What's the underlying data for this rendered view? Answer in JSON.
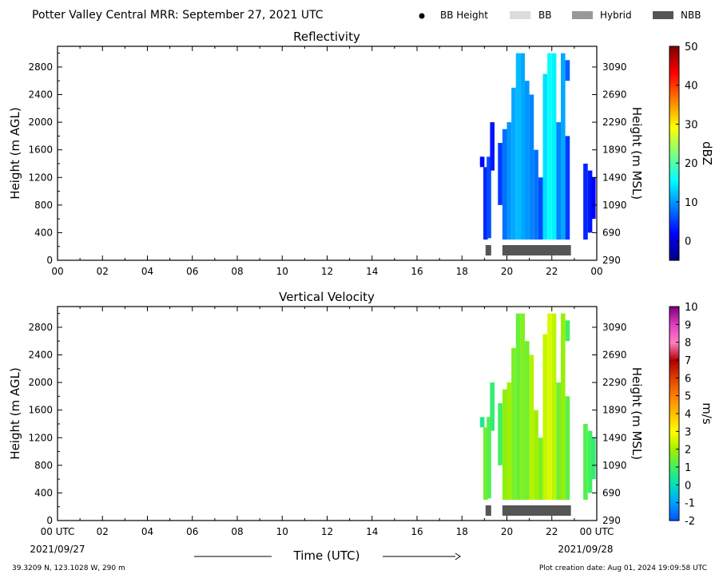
{
  "header": {
    "title": "Potter Valley Central MRR:  September 27, 2021 UTC",
    "legend": [
      {
        "label": "BB Height",
        "kind": "dot",
        "color": "#000000"
      },
      {
        "label": "BB",
        "kind": "box",
        "color": "#dcdcdc"
      },
      {
        "label": "Hybrid",
        "kind": "box",
        "color": "#999999"
      },
      {
        "label": "NBB",
        "kind": "box",
        "color": "#555555"
      }
    ]
  },
  "footer": {
    "location": "39.3209 N, 123.1028 W, 290 m",
    "creation": "Plot creation date: Aug 01, 2024 19:09:58 UTC",
    "start_date": "2021/09/27",
    "end_date": "2021/09/28",
    "xlabel": "Time (UTC)"
  },
  "chart_data": [
    {
      "id": "reflectivity",
      "type": "heatmap",
      "title": "Reflectivity",
      "xlabel": "",
      "ylabel": "Height (m AGL)",
      "y2label": "Height (m MSL)",
      "x_ticks": [
        "00",
        "02",
        "04",
        "06",
        "08",
        "10",
        "12",
        "14",
        "16",
        "18",
        "20",
        "22",
        "00"
      ],
      "xlim": [
        0,
        24
      ],
      "ylim": [
        0,
        3100
      ],
      "y_ticks": [
        0,
        400,
        800,
        1200,
        1600,
        2000,
        2400,
        2800
      ],
      "y2_ticks": [
        290,
        690,
        1090,
        1490,
        1890,
        2290,
        2690,
        3090
      ],
      "colorbar": {
        "label": "dBZ",
        "range": [
          -5,
          50
        ],
        "ticks": [
          0,
          10,
          20,
          30,
          40,
          50
        ],
        "colors": [
          "#00007f",
          "#0000ff",
          "#007fff",
          "#00ffff",
          "#7fff7f",
          "#ffff00",
          "#ff7f00",
          "#ff0000",
          "#7f0000"
        ]
      },
      "echo_columns": [
        {
          "x": 18.9,
          "top": 1500,
          "bottom": 1350,
          "value": 2
        },
        {
          "x": 19.05,
          "top": 1350,
          "bottom": 300,
          "value": 4
        },
        {
          "x": 19.2,
          "top": 1500,
          "bottom": 320,
          "value": 6
        },
        {
          "x": 19.35,
          "top": 2000,
          "bottom": 1300,
          "value": 3
        },
        {
          "x": 19.7,
          "top": 1700,
          "bottom": 800,
          "value": 5
        },
        {
          "x": 19.9,
          "top": 1900,
          "bottom": 300,
          "value": 8
        },
        {
          "x": 20.1,
          "top": 2000,
          "bottom": 300,
          "value": 10
        },
        {
          "x": 20.3,
          "top": 2500,
          "bottom": 300,
          "value": 11
        },
        {
          "x": 20.5,
          "top": 3000,
          "bottom": 300,
          "value": 12
        },
        {
          "x": 20.7,
          "top": 3000,
          "bottom": 300,
          "value": 11
        },
        {
          "x": 20.9,
          "top": 2600,
          "bottom": 300,
          "value": 10
        },
        {
          "x": 21.1,
          "top": 2400,
          "bottom": 300,
          "value": 9
        },
        {
          "x": 21.3,
          "top": 1600,
          "bottom": 300,
          "value": 8
        },
        {
          "x": 21.5,
          "top": 1200,
          "bottom": 300,
          "value": 6
        },
        {
          "x": 21.7,
          "top": 2700,
          "bottom": 300,
          "value": 14
        },
        {
          "x": 21.9,
          "top": 3000,
          "bottom": 300,
          "value": 16
        },
        {
          "x": 22.1,
          "top": 3000,
          "bottom": 300,
          "value": 15
        },
        {
          "x": 22.3,
          "top": 2000,
          "bottom": 300,
          "value": 9
        },
        {
          "x": 22.5,
          "top": 3000,
          "bottom": 300,
          "value": 11
        },
        {
          "x": 22.7,
          "top": 2900,
          "bottom": 2600,
          "value": 7
        },
        {
          "x": 22.7,
          "top": 1800,
          "bottom": 300,
          "value": 5
        },
        {
          "x": 23.5,
          "top": 1400,
          "bottom": 300,
          "value": 4
        },
        {
          "x": 23.7,
          "top": 1300,
          "bottom": 400,
          "value": 3
        },
        {
          "x": 23.85,
          "top": 1200,
          "bottom": 600,
          "value": 2
        }
      ],
      "bb_segments": [
        {
          "type": "NBB",
          "start": 19.05,
          "end": 19.3
        },
        {
          "type": "NBB",
          "start": 19.8,
          "end": 22.85
        }
      ]
    },
    {
      "id": "vertical-velocity",
      "type": "heatmap",
      "title": "Vertical Velocity",
      "xlabel": "Time (UTC)",
      "ylabel": "Height (m AGL)",
      "y2label": "Height (m MSL)",
      "x_ticks": [
        "00 UTC",
        "02",
        "04",
        "06",
        "08",
        "10",
        "12",
        "14",
        "16",
        "18",
        "20",
        "22",
        "00 UTC"
      ],
      "xlim": [
        0,
        24
      ],
      "ylim": [
        0,
        3100
      ],
      "y_ticks": [
        0,
        400,
        800,
        1200,
        1600,
        2000,
        2400,
        2800
      ],
      "y2_ticks": [
        290,
        690,
        1090,
        1490,
        1890,
        2290,
        2690,
        3090
      ],
      "colorbar": {
        "label": "m/s",
        "range": [
          -2,
          10
        ],
        "ticks": [
          -2,
          -1,
          0,
          1,
          2,
          3,
          4,
          5,
          6,
          7,
          8,
          9,
          10
        ],
        "colors": [
          "#0050ff",
          "#00a0ff",
          "#00e0c0",
          "#40f060",
          "#a0f000",
          "#ffff00",
          "#ffc000",
          "#ff8000",
          "#e04000",
          "#b00000",
          "#ff80c0",
          "#e040c0",
          "#800080"
        ]
      },
      "echo_columns": [
        {
          "x": 18.9,
          "top": 1500,
          "bottom": 1350,
          "value": 0.5
        },
        {
          "x": 19.05,
          "top": 1350,
          "bottom": 300,
          "value": 1.5
        },
        {
          "x": 19.2,
          "top": 1500,
          "bottom": 320,
          "value": 1.2
        },
        {
          "x": 19.35,
          "top": 2000,
          "bottom": 1300,
          "value": 0.8
        },
        {
          "x": 19.7,
          "top": 1700,
          "bottom": 800,
          "value": 1.0
        },
        {
          "x": 19.9,
          "top": 1900,
          "bottom": 300,
          "value": 1.8
        },
        {
          "x": 20.1,
          "top": 2000,
          "bottom": 300,
          "value": 2.0
        },
        {
          "x": 20.3,
          "top": 2500,
          "bottom": 300,
          "value": 1.6
        },
        {
          "x": 20.5,
          "top": 3000,
          "bottom": 300,
          "value": 1.4
        },
        {
          "x": 20.7,
          "top": 3000,
          "bottom": 300,
          "value": 1.7
        },
        {
          "x": 20.9,
          "top": 2600,
          "bottom": 300,
          "value": 1.5
        },
        {
          "x": 21.1,
          "top": 2400,
          "bottom": 300,
          "value": 2.2
        },
        {
          "x": 21.3,
          "top": 1600,
          "bottom": 300,
          "value": 2.0
        },
        {
          "x": 21.5,
          "top": 1200,
          "bottom": 300,
          "value": 1.6
        },
        {
          "x": 21.7,
          "top": 2700,
          "bottom": 300,
          "value": 2.4
        },
        {
          "x": 21.9,
          "top": 3000,
          "bottom": 300,
          "value": 2.6
        },
        {
          "x": 22.1,
          "top": 3000,
          "bottom": 300,
          "value": 2.3
        },
        {
          "x": 22.3,
          "top": 2000,
          "bottom": 300,
          "value": 1.5
        },
        {
          "x": 22.5,
          "top": 3000,
          "bottom": 300,
          "value": 1.9
        },
        {
          "x": 22.7,
          "top": 2900,
          "bottom": 2600,
          "value": 1.0
        },
        {
          "x": 22.7,
          "top": 1800,
          "bottom": 300,
          "value": 1.3
        },
        {
          "x": 23.5,
          "top": 1400,
          "bottom": 300,
          "value": 1.2
        },
        {
          "x": 23.7,
          "top": 1300,
          "bottom": 400,
          "value": 1.0
        },
        {
          "x": 23.85,
          "top": 1200,
          "bottom": 600,
          "value": 0.8
        }
      ],
      "bb_segments": [
        {
          "type": "NBB",
          "start": 19.05,
          "end": 19.3
        },
        {
          "type": "NBB",
          "start": 19.8,
          "end": 22.85
        }
      ]
    }
  ]
}
